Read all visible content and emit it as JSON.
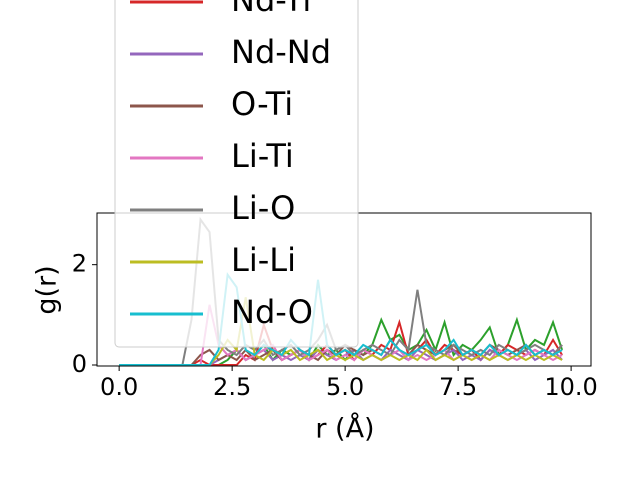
{
  "chart_data": {
    "type": "line",
    "x_label": "r (Å)",
    "y_label": "g(r)",
    "x": [
      0,
      0.2,
      0.4,
      0.6,
      0.8,
      1.0,
      1.2,
      1.4,
      1.6,
      1.8,
      2.0,
      2.2,
      2.4,
      2.6,
      2.8,
      3.0,
      3.2,
      3.4,
      3.6,
      3.8,
      4.0,
      4.2,
      4.4,
      4.6,
      4.8,
      5.0,
      5.2,
      5.4,
      5.6,
      5.8,
      6.0,
      6.2,
      6.4,
      6.6,
      6.8,
      7.0,
      7.2,
      7.4,
      7.6,
      7.8,
      8.0,
      8.2,
      8.4,
      8.6,
      8.8,
      9.0,
      9.2,
      9.4,
      9.6,
      9.8
    ],
    "series": [
      {
        "color": "#2ca02c",
        "values": [
          0,
          0,
          0,
          0,
          0,
          0,
          0,
          0,
          0,
          0,
          0,
          0,
          0.1,
          0.3,
          0.1,
          0.2,
          0.4,
          0.1,
          0.3,
          0.2,
          0.3,
          0.1,
          0.4,
          0.2,
          0.3,
          0.1,
          0.3,
          0.2,
          0.4,
          0.9,
          0.5,
          0.6,
          0.3,
          0.4,
          0.7,
          0.3,
          0.85,
          0.2,
          0.4,
          0.3,
          0.5,
          0.75,
          0.2,
          0.4,
          0.9,
          0.3,
          0.5,
          0.4,
          0.85,
          0.3
        ]
      },
      {
        "name": "Nd-Ti",
        "color": "#d62728",
        "values": [
          0,
          0,
          0,
          0,
          0,
          0,
          0,
          0,
          0,
          0.1,
          0,
          0,
          0,
          0,
          0.2,
          0.1,
          0.8,
          0.3,
          0.1,
          0.2,
          0.3,
          0.1,
          0.2,
          0.4,
          0.2,
          0.3,
          0.1,
          0.3,
          0.2,
          0.4,
          0.3,
          0.85,
          0.2,
          0.3,
          0.5,
          0.2,
          0.4,
          0.3,
          0.2,
          0.3,
          0.1,
          0.3,
          0.2,
          0.4,
          0.3,
          0.2,
          0.3,
          0.2,
          0.5,
          0.2
        ]
      },
      {
        "name": "Nd-Nd",
        "color": "#9467bd",
        "values": [
          0,
          0,
          0,
          0,
          0,
          0,
          0,
          0,
          0,
          0,
          0,
          0.1,
          0.2,
          0.3,
          0.1,
          0.2,
          0.3,
          0.1,
          0.2,
          0.1,
          0.2,
          0.1,
          0.3,
          0.2,
          0.1,
          0.2,
          0.3,
          0.1,
          0.2,
          0.1,
          0.3,
          0.2,
          0.1,
          0.3,
          0.2,
          0.1,
          0.2,
          0.3,
          0.1,
          0.2,
          0.1,
          0.3,
          0.2,
          0.1,
          0.2,
          0.3,
          0.1,
          0.2,
          0.3,
          0.1
        ]
      },
      {
        "name": "O-Ti",
        "color": "#8c564b",
        "values": [
          0,
          0,
          0,
          0,
          0,
          0,
          0,
          0,
          0,
          0.2,
          0.3,
          0.1,
          0.2,
          0.1,
          0.3,
          0.1,
          0.2,
          0.3,
          0.1,
          0.2,
          0.3,
          0.2,
          0.1,
          0.3,
          0.2,
          0.4,
          0.3,
          0.2,
          0.3,
          0.2,
          0.5,
          0.3,
          0.2,
          0.4,
          0.3,
          0.2,
          0.3,
          0.4,
          0.2,
          0.3,
          0.2,
          0.4,
          0.3,
          0.2,
          0.3,
          0.4,
          0.2,
          0.3,
          0.2,
          0.4
        ]
      },
      {
        "name": "Li-Ti",
        "color": "#e377c2",
        "values": [
          0,
          0,
          0,
          0,
          0,
          0,
          0,
          0,
          0,
          0,
          1.2,
          0.4,
          0.2,
          0.3,
          0.1,
          0.2,
          0.3,
          0.4,
          0.1,
          0.2,
          0.3,
          0.1,
          0.2,
          0.3,
          0.1,
          0.2,
          0.1,
          0.3,
          0.2,
          0.1,
          0.2,
          0.3,
          0.1,
          0.2,
          0.1,
          0.2,
          0.3,
          0.1,
          0.2,
          0.1,
          0.2,
          0.1,
          0.3,
          0.2,
          0.1,
          0.2,
          0.3,
          0.2,
          0.1,
          0.2
        ]
      },
      {
        "name": "Li-O",
        "color": "#7f7f7f",
        "values": [
          0,
          0,
          0,
          0,
          0,
          0,
          0,
          0,
          0.9,
          2.9,
          2.65,
          0.5,
          0.3,
          0.2,
          0.4,
          0.3,
          0.5,
          0.2,
          0.3,
          0.4,
          0.2,
          0.3,
          0.5,
          0.8,
          0.3,
          0.4,
          0.2,
          0.3,
          0.4,
          0.3,
          0.2,
          0.5,
          0.3,
          1.5,
          0.4,
          0.3,
          0.2,
          0.4,
          0.3,
          0.2,
          0.3,
          0.2,
          0.4,
          0.3,
          0.2,
          0.3,
          0.4,
          0.3,
          0.2,
          0.4
        ]
      },
      {
        "name": "Li-Li",
        "color": "#bcbd22",
        "values": [
          0,
          0,
          0,
          0,
          0,
          0,
          0,
          0,
          0,
          0,
          0,
          0.2,
          0.5,
          0.3,
          1.35,
          0.2,
          0.1,
          0.3,
          0.2,
          0.3,
          0.1,
          0.2,
          0.3,
          0.1,
          0.2,
          0.1,
          0.2,
          0.1,
          0.2,
          0.1,
          0.2,
          0.1,
          0.2,
          0.1,
          0.3,
          0.1,
          0.2,
          0.1,
          0.2,
          0.1,
          0.2,
          0.1,
          0.2,
          0.1,
          0.2,
          0.1,
          0.2,
          0.1,
          0.2,
          0.1
        ]
      },
      {
        "name": "Nd-O",
        "color": "#17becf",
        "values": [
          0,
          0,
          0,
          0,
          0,
          0,
          0,
          0,
          0,
          0,
          0,
          0.3,
          1.8,
          1.55,
          0.3,
          0.2,
          0.4,
          0.3,
          0.2,
          0.5,
          0.3,
          0.2,
          1.7,
          0.4,
          0.2,
          0.3,
          0.2,
          0.4,
          0.3,
          0.2,
          0.5,
          0.3,
          0.2,
          0.3,
          0.4,
          0.2,
          0.3,
          0.5,
          0.2,
          0.3,
          0.2,
          0.4,
          0.2,
          0.3,
          0.2,
          0.4,
          0.2,
          0.3,
          0.2,
          0.3
        ]
      }
    ],
    "xlim": [
      -0.49,
      10.44
    ],
    "xticks": [
      {
        "value": 0,
        "label": "0.0"
      },
      {
        "value": 2.5,
        "label": "2.5"
      },
      {
        "value": 5,
        "label": "5.0"
      },
      {
        "value": 7.5,
        "label": "7.5"
      },
      {
        "value": 10,
        "label": "10.0"
      }
    ],
    "ylim": [
      -0.02,
      3.03
    ],
    "yticks": [
      0,
      2
    ],
    "legend": "upper left"
  }
}
